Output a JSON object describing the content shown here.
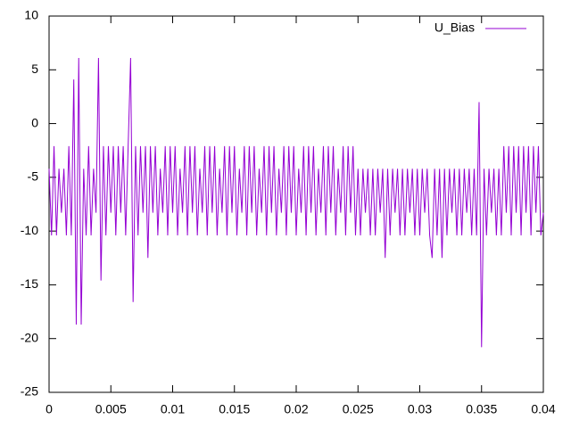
{
  "chart_data": {
    "type": "line",
    "x": [
      0,
      0.0002,
      0.0004,
      0.0006,
      0.0008,
      0.001,
      0.0012,
      0.0014,
      0.0016,
      0.0018,
      0.002,
      0.0022,
      0.0024,
      0.0026,
      0.0028,
      0.003,
      0.0032,
      0.0034,
      0.0036,
      0.0038,
      0.004,
      0.0042,
      0.0044,
      0.0046,
      0.0048,
      0.005,
      0.0052,
      0.0054,
      0.0056,
      0.0058,
      0.006,
      0.0062,
      0.0064,
      0.0066,
      0.0068,
      0.007,
      0.0072,
      0.0074,
      0.0076,
      0.0078,
      0.008,
      0.0082,
      0.0084,
      0.0086,
      0.0088,
      0.009,
      0.0092,
      0.0094,
      0.0096,
      0.0098,
      0.01,
      0.0102,
      0.0104,
      0.0106,
      0.0108,
      0.011,
      0.0112,
      0.0114,
      0.0116,
      0.0118,
      0.012,
      0.0122,
      0.0124,
      0.0126,
      0.0128,
      0.013,
      0.0132,
      0.0134,
      0.0136,
      0.0138,
      0.014,
      0.0142,
      0.0144,
      0.0146,
      0.0148,
      0.015,
      0.0152,
      0.0154,
      0.0156,
      0.0158,
      0.016,
      0.0162,
      0.0164,
      0.0166,
      0.0168,
      0.017,
      0.0172,
      0.0174,
      0.0176,
      0.0178,
      0.018,
      0.0182,
      0.0184,
      0.0186,
      0.0188,
      0.019,
      0.0192,
      0.0194,
      0.0196,
      0.0198,
      0.02,
      0.0202,
      0.0204,
      0.0206,
      0.0208,
      0.021,
      0.0212,
      0.0214,
      0.0216,
      0.0218,
      0.022,
      0.0222,
      0.0224,
      0.0226,
      0.0228,
      0.023,
      0.0232,
      0.0234,
      0.0236,
      0.0238,
      0.024,
      0.0242,
      0.0244,
      0.0246,
      0.0248,
      0.025,
      0.0252,
      0.0254,
      0.0256,
      0.0258,
      0.026,
      0.0262,
      0.0264,
      0.0266,
      0.0268,
      0.027,
      0.0272,
      0.0274,
      0.0276,
      0.0278,
      0.028,
      0.0282,
      0.0284,
      0.0286,
      0.0288,
      0.029,
      0.0292,
      0.0294,
      0.0296,
      0.0298,
      0.03,
      0.0302,
      0.0304,
      0.0306,
      0.0308,
      0.031,
      0.0312,
      0.0314,
      0.0316,
      0.0318,
      0.032,
      0.0322,
      0.0324,
      0.0326,
      0.0328,
      0.033,
      0.0332,
      0.0334,
      0.0336,
      0.0338,
      0.034,
      0.0342,
      0.0344,
      0.0346,
      0.0348,
      0.035,
      0.0352,
      0.0354,
      0.0356,
      0.0358,
      0.036,
      0.0362,
      0.0364,
      0.0366,
      0.0368,
      0.037,
      0.0372,
      0.0374,
      0.0376,
      0.0378,
      0.038,
      0.0382,
      0.0384,
      0.0386,
      0.0388,
      0.039,
      0.0392,
      0.0394,
      0.0396,
      0.0398,
      0.04
    ],
    "series": [
      {
        "name": "U_Bias",
        "color": "#9400d3",
        "values": [
          -4.2,
          -10.4,
          -2.1,
          -10.4,
          -4.2,
          -8.3,
          -4.2,
          -10.4,
          -2.1,
          -10.4,
          4.1,
          -18.7,
          6.1,
          -18.7,
          -4.2,
          -10.4,
          -2.1,
          -10.4,
          -4.2,
          -8.3,
          6.1,
          -14.6,
          -2.1,
          -10.4,
          -2.1,
          -8.3,
          -2.1,
          -10.4,
          -2.1,
          -8.3,
          -2.1,
          -10.4,
          -2.1,
          6.1,
          -16.6,
          -2.1,
          -10.4,
          -2.1,
          -8.3,
          -2.1,
          -12.5,
          -2.1,
          -8.3,
          -2.1,
          -10.4,
          -4.2,
          -8.3,
          -2.1,
          -10.4,
          -2.1,
          -8.3,
          -2.1,
          -10.4,
          -4.2,
          -8.3,
          -2.1,
          -10.4,
          -2.1,
          -8.3,
          -2.1,
          -10.4,
          -4.2,
          -8.3,
          -2.1,
          -10.4,
          -2.1,
          -8.3,
          -2.1,
          -10.4,
          -4.2,
          -8.3,
          -2.1,
          -10.4,
          -2.1,
          -8.3,
          -2.1,
          -10.4,
          -4.2,
          -8.3,
          -2.1,
          -10.4,
          -2.1,
          -8.3,
          -2.1,
          -10.4,
          -4.2,
          -8.3,
          -2.1,
          -10.4,
          -2.1,
          -8.3,
          -2.1,
          -10.4,
          -4.2,
          -8.3,
          -2.1,
          -10.4,
          -2.1,
          -8.3,
          -2.1,
          -10.4,
          -4.2,
          -8.3,
          -2.1,
          -10.4,
          -2.1,
          -8.3,
          -2.1,
          -10.4,
          -4.2,
          -8.3,
          -2.1,
          -10.4,
          -2.1,
          -8.3,
          -2.1,
          -10.4,
          -4.2,
          -8.3,
          -2.1,
          -10.4,
          -2.1,
          -8.3,
          -2.1,
          -10.4,
          -4.2,
          -10.4,
          -4.2,
          -8.3,
          -4.2,
          -10.4,
          -4.2,
          -10.4,
          -4.2,
          -8.3,
          -4.2,
          -12.5,
          -4.2,
          -10.4,
          -4.2,
          -8.3,
          -4.2,
          -10.4,
          -4.2,
          -10.4,
          -4.2,
          -8.3,
          -4.2,
          -10.4,
          -4.2,
          -10.4,
          -4.2,
          -8.3,
          -4.2,
          -10.4,
          -12.5,
          -4.2,
          -10.4,
          -4.2,
          -12.5,
          -4.2,
          -10.4,
          -4.2,
          -8.3,
          -4.2,
          -10.4,
          -4.2,
          -10.4,
          -4.2,
          -8.3,
          -4.2,
          -10.4,
          -4.2,
          -10.4,
          2,
          -20.8,
          -4.2,
          -10.4,
          -4.2,
          -8.3,
          -4.2,
          -10.4,
          -4.2,
          -10.4,
          -2.1,
          -8.3,
          -2.1,
          -10.4,
          -2.1,
          -8.3,
          -2.1,
          -10.4,
          -2.1,
          -8.3,
          -2.1,
          -10.4,
          -2.1,
          -8.3,
          -2.1,
          -10.4,
          -8.3
        ]
      }
    ],
    "xlim": [
      0,
      0.04
    ],
    "xticks": [
      0,
      0.005,
      0.01,
      0.015,
      0.02,
      0.025,
      0.03,
      0.035,
      0.04
    ],
    "ylim": [
      -25,
      10
    ],
    "yticks": [
      -25,
      -20,
      -15,
      -10,
      -5,
      0,
      5,
      10
    ],
    "legend": "top-right"
  }
}
